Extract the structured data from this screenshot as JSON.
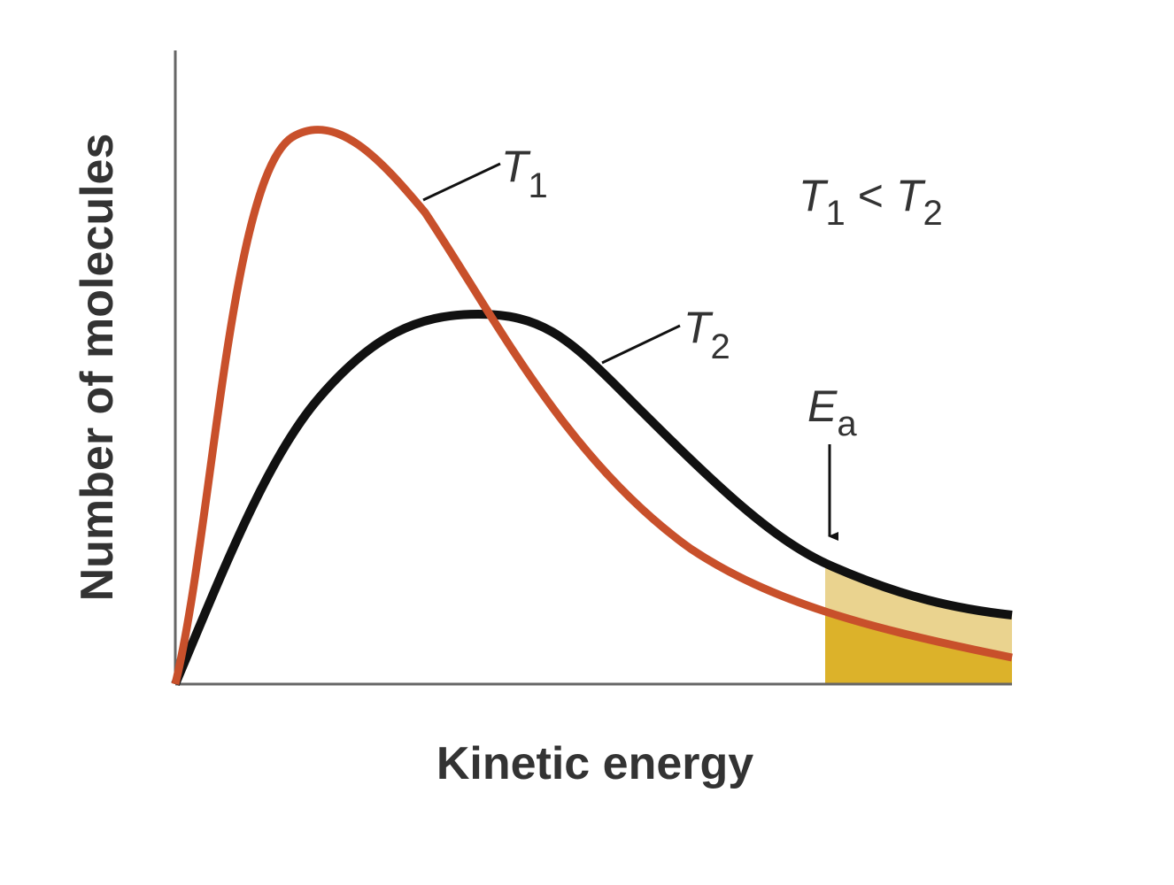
{
  "axes": {
    "y_label": "Number of molecules",
    "x_label": "Kinetic energy"
  },
  "curves": [
    {
      "symbol": "T",
      "subscript": "1"
    },
    {
      "symbol": "T",
      "subscript": "2"
    }
  ],
  "relation": {
    "left": {
      "symbol": "T",
      "subscript": "1"
    },
    "operator": "<",
    "right": {
      "symbol": "T",
      "subscript": "2"
    }
  },
  "threshold": {
    "symbol": "E",
    "subscript": "a"
  }
}
